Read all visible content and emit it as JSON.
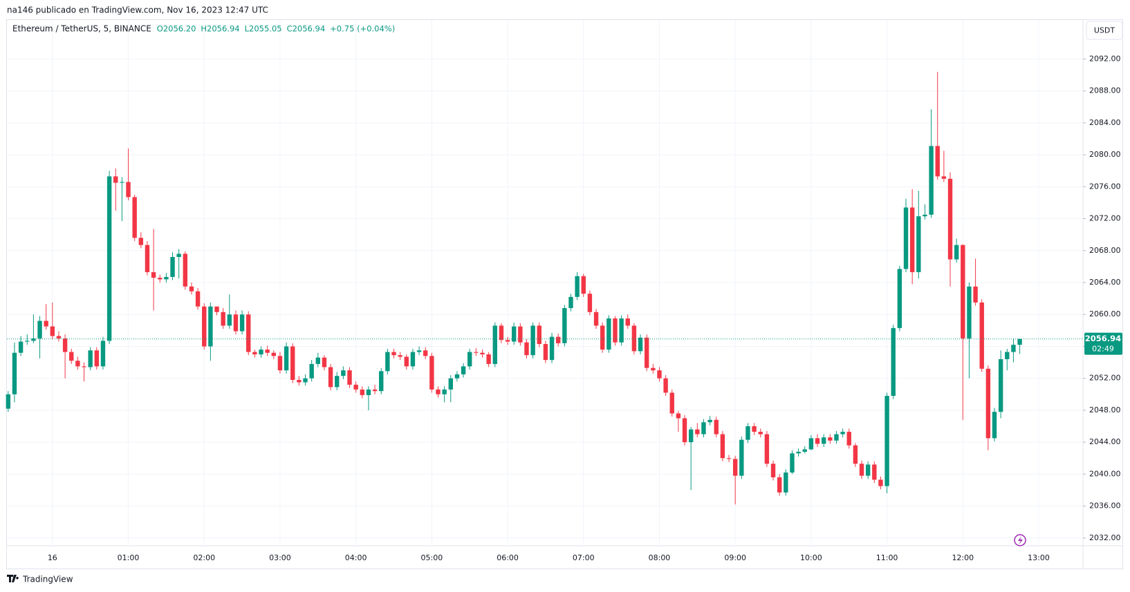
{
  "header": {
    "text": "na146 publicado en TradingView.com, Nov 16, 2023 12:47 UTC"
  },
  "chart_data": {
    "type": "candlestick",
    "symbol": "Ethereum / TetherUS, 5, BINANCE",
    "ohlc_label": [
      "O2056.20",
      "H2056.94",
      "L2055.05",
      "C2056.94",
      "+0.75 (+0.04%)"
    ],
    "currency": "USDT",
    "countdown": "02:49",
    "up_color": "#089981",
    "down_color": "#f23645",
    "grid": true,
    "last_price_line": true,
    "xlim": [
      -36,
      815
    ],
    "ylim": [
      2031.03,
      2096.8
    ],
    "xticks": [
      {
        "value": 0,
        "label": "16"
      },
      {
        "value": 60,
        "label": "01:00"
      },
      {
        "value": 120,
        "label": "02:00"
      },
      {
        "value": 180,
        "label": "03:00"
      },
      {
        "value": 240,
        "label": "04:00"
      },
      {
        "value": 300,
        "label": "05:00"
      },
      {
        "value": 360,
        "label": "06:00"
      },
      {
        "value": 420,
        "label": "07:00"
      },
      {
        "value": 480,
        "label": "08:00"
      },
      {
        "value": 540,
        "label": "09:00"
      },
      {
        "value": 600,
        "label": "10:00"
      },
      {
        "value": 660,
        "label": "11:00"
      },
      {
        "value": 720,
        "label": "12:00"
      },
      {
        "value": 780,
        "label": "13:00"
      }
    ],
    "yticks": [
      {
        "value": 2032,
        "label": "2032.00"
      },
      {
        "value": 2036,
        "label": "2036.00"
      },
      {
        "value": 2040,
        "label": "2040.00"
      },
      {
        "value": 2044,
        "label": "2044.00"
      },
      {
        "value": 2048,
        "label": "2048.00"
      },
      {
        "value": 2052,
        "label": "2052.00"
      },
      {
        "value": 2056,
        "label": "2056.00"
      },
      {
        "value": 2060,
        "label": "2060.00"
      },
      {
        "value": 2064,
        "label": "2064.00"
      },
      {
        "value": 2068,
        "label": "2068.00"
      },
      {
        "value": 2072,
        "label": "2072.00"
      },
      {
        "value": 2076,
        "label": "2076.00"
      },
      {
        "value": 2080,
        "label": "2080.00"
      },
      {
        "value": 2084,
        "label": "2084.00"
      },
      {
        "value": 2088,
        "label": "2088.00"
      },
      {
        "value": 2092,
        "label": "2092.00"
      }
    ],
    "x": [
      -35,
      -30,
      -25,
      -20,
      -15,
      -10,
      -5,
      0,
      5,
      10,
      15,
      20,
      25,
      30,
      35,
      40,
      45,
      50,
      55,
      60,
      65,
      70,
      75,
      80,
      85,
      90,
      95,
      100,
      105,
      110,
      115,
      120,
      125,
      130,
      135,
      140,
      145,
      150,
      155,
      160,
      165,
      170,
      175,
      180,
      185,
      190,
      195,
      200,
      205,
      210,
      215,
      220,
      225,
      230,
      235,
      240,
      245,
      250,
      255,
      260,
      265,
      270,
      275,
      280,
      285,
      290,
      295,
      300,
      305,
      310,
      315,
      320,
      325,
      330,
      335,
      340,
      345,
      350,
      355,
      360,
      365,
      370,
      375,
      380,
      385,
      390,
      395,
      400,
      405,
      410,
      415,
      420,
      425,
      430,
      435,
      440,
      445,
      450,
      455,
      460,
      465,
      470,
      475,
      480,
      485,
      490,
      495,
      500,
      505,
      510,
      515,
      520,
      525,
      530,
      535,
      540,
      545,
      550,
      555,
      560,
      565,
      570,
      575,
      580,
      585,
      590,
      595,
      600,
      605,
      610,
      615,
      620,
      625,
      630,
      635,
      640,
      645,
      650,
      655,
      660,
      665,
      670,
      675,
      680,
      685,
      690,
      695,
      700,
      705,
      710,
      715,
      720,
      725,
      730,
      735,
      740,
      745,
      750,
      755,
      760,
      765
    ],
    "open": [
      2048.2,
      2050.0,
      2055.2,
      2056.6,
      2056.7,
      2057.0,
      2059.2,
      2058.5,
      2057.3,
      2057.0,
      2055.3,
      2054.2,
      2053.5,
      2053.4,
      2055.5,
      2053.5,
      2056.7,
      2077.3,
      2076.5,
      2076.6,
      2074.7,
      2069.6,
      2068.7,
      2065.3,
      2064.6,
      2064.4,
      2064.7,
      2067.2,
      2067.6,
      2063.5,
      2062.9,
      2061.0,
      2056.0,
      2061.0,
      2060.3,
      2058.6,
      2060.0,
      2057.9,
      2060.0,
      2055.3,
      2055.0,
      2055.6,
      2055.2,
      2054.8,
      2053.0,
      2056.0,
      2051.8,
      2051.5,
      2052.0,
      2053.8,
      2054.6,
      2053.4,
      2050.9,
      2052.3,
      2053.0,
      2051.2,
      2050.6,
      2049.9,
      2050.6,
      2050.4,
      2052.9,
      2055.3,
      2054.9,
      2054.7,
      2053.5,
      2055.3,
      2055.5,
      2054.8,
      2050.6,
      2050.0,
      2050.6,
      2052.0,
      2052.5,
      2053.5,
      2055.3,
      2055.2,
      2055.0,
      2053.8,
      2058.6,
      2056.8,
      2056.6,
      2058.5,
      2056.5,
      2054.9,
      2058.6,
      2056.3,
      2054.3,
      2057.2,
      2056.4,
      2060.8,
      2062.2,
      2064.8,
      2062.6,
      2060.3,
      2058.6,
      2055.6,
      2059.5,
      2056.5,
      2059.5,
      2058.6,
      2055.4,
      2057.1,
      2053.3,
      2053.0,
      2052.0,
      2050.2,
      2047.6,
      2047.0,
      2044.0,
      2045.6,
      2045.0,
      2046.5,
      2046.8,
      2045.0,
      2042.0,
      2041.9,
      2039.8,
      2044.3,
      2046.0,
      2045.3,
      2045.0,
      2041.3,
      2039.6,
      2037.7,
      2040.2,
      2042.6,
      2042.8,
      2043.1,
      2044.5,
      2043.8,
      2044.6,
      2044.2,
      2045.0,
      2045.3,
      2043.6,
      2041.3,
      2039.8,
      2041.2,
      2039.3,
      2038.5,
      2049.8,
      2058.3,
      2065.7,
      2073.4,
      2065.3,
      2072.3,
      2072.5,
      2081.1,
      2077.3,
      2077.0,
      2066.9,
      2068.7,
      2057.0,
      2063.5,
      2061.5,
      2053.2,
      2044.5,
      2047.8,
      2054.4,
      2055.3,
      2056.2
    ],
    "high": [
      2050.4,
      2056.5,
      2057.3,
      2057.5,
      2060.0,
      2059.8,
      2061.3,
      2061.5,
      2057.9,
      2057.5,
      2055.7,
      2054.7,
      2054.0,
      2055.9,
      2055.9,
      2057.2,
      2078.0,
      2078.3,
      2077.2,
      2080.8,
      2075.0,
      2070.3,
      2069.2,
      2070.7,
      2065.0,
      2065.2,
      2067.8,
      2068.2,
      2067.9,
      2064.0,
      2063.3,
      2061.4,
      2061.5,
      2061.0,
      2060.8,
      2062.5,
      2060.5,
      2060.5,
      2060.4,
      2055.6,
      2056.0,
      2056.1,
      2055.5,
      2055.3,
      2056.5,
      2056.4,
      2052.3,
      2052.5,
      2054.3,
      2055.2,
      2054.9,
      2053.8,
      2052.8,
      2053.5,
      2053.4,
      2051.6,
      2051.0,
      2051.0,
      2051.2,
      2053.3,
      2055.7,
      2055.7,
      2055.3,
      2055.0,
      2055.7,
      2056.0,
      2055.9,
      2055.2,
      2051.0,
      2051.0,
      2052.4,
      2052.9,
      2053.9,
      2055.7,
      2055.8,
      2055.6,
      2055.3,
      2059.0,
      2058.9,
      2057.2,
      2059.0,
      2058.9,
      2056.9,
      2059.0,
      2059.0,
      2056.7,
      2057.7,
      2057.6,
      2061.2,
      2062.6,
      2065.3,
      2065.1,
      2063.0,
      2060.7,
      2059.0,
      2059.9,
      2059.8,
      2059.9,
      2060.0,
      2058.9,
      2057.5,
      2057.5,
      2053.8,
      2053.4,
      2052.4,
      2050.6,
      2047.9,
      2047.4,
      2045.9,
      2046.4,
      2046.9,
      2047.3,
      2047.2,
      2045.4,
      2042.4,
      2042.3,
      2044.7,
      2046.4,
      2046.4,
      2045.7,
      2045.4,
      2041.7,
      2040.0,
      2040.6,
      2043.0,
      2043.2,
      2043.5,
      2044.9,
      2045.0,
      2045.0,
      2045.0,
      2045.4,
      2045.7,
      2045.7,
      2043.9,
      2041.7,
      2041.6,
      2041.6,
      2039.7,
      2050.2,
      2058.7,
      2066.1,
      2074.5,
      2075.7,
      2075.5,
      2073.8,
      2085.7,
      2090.4,
      2080.5,
      2077.8,
      2069.5,
      2068.8,
      2064.0,
      2067.0,
      2061.9,
      2053.6,
      2048.3,
      2055.5,
      2055.7,
      2057.0,
      2056.94
    ],
    "low": [
      2047.8,
      2049.0,
      2054.8,
      2056.2,
      2056.4,
      2054.5,
      2058.1,
      2056.9,
      2056.6,
      2052.0,
      2053.8,
      2053.1,
      2051.6,
      2053.0,
      2053.1,
      2053.1,
      2056.3,
      2073.0,
      2071.7,
      2074.3,
      2069.2,
      2068.3,
      2064.9,
      2060.5,
      2064.0,
      2064.0,
      2064.3,
      2064.5,
      2063.1,
      2062.5,
      2060.6,
      2055.6,
      2054.2,
      2059.9,
      2058.2,
      2058.2,
      2057.5,
      2057.5,
      2054.9,
      2054.6,
      2054.6,
      2054.8,
      2054.4,
      2052.6,
      2052.6,
      2051.4,
      2051.1,
      2051.1,
      2051.6,
      2053.4,
      2053.0,
      2050.5,
      2050.5,
      2051.9,
      2050.8,
      2050.2,
      2049.5,
      2048.0,
      2050.0,
      2050.0,
      2052.5,
      2054.5,
      2054.3,
      2053.1,
      2053.1,
      2054.9,
      2054.4,
      2050.2,
      2049.6,
      2049.0,
      2049.0,
      2051.6,
      2052.1,
      2053.1,
      2054.8,
      2054.6,
      2053.4,
      2053.4,
      2056.4,
      2056.2,
      2056.2,
      2056.1,
      2054.5,
      2054.5,
      2055.9,
      2053.9,
      2053.9,
      2056.0,
      2056.0,
      2060.4,
      2061.8,
      2062.2,
      2059.9,
      2058.2,
      2055.2,
      2055.2,
      2056.1,
      2056.1,
      2058.2,
      2055.0,
      2055.0,
      2052.9,
      2052.6,
      2051.6,
      2049.8,
      2047.2,
      2045.3,
      2043.6,
      2038.0,
      2044.6,
      2044.6,
      2046.1,
      2044.6,
      2041.6,
      2041.5,
      2036.2,
      2039.4,
      2043.9,
      2044.9,
      2044.6,
      2040.9,
      2039.2,
      2037.3,
      2037.3,
      2040.0,
      2042.2,
      2042.6,
      2043.0,
      2043.4,
      2043.4,
      2043.8,
      2043.8,
      2044.6,
      2043.2,
      2040.9,
      2039.4,
      2039.4,
      2038.9,
      2038.1,
      2037.6,
      2049.4,
      2057.9,
      2065.3,
      2063.8,
      2064.5,
      2071.9,
      2072.1,
      2076.9,
      2076.6,
      2063.5,
      2066.5,
      2046.8,
      2052.0,
      2061.1,
      2052.8,
      2043.0,
      2044.1,
      2047.0,
      2053.0,
      2054.0,
      2055.05
    ],
    "close": [
      2050.0,
      2055.2,
      2056.6,
      2056.7,
      2057.0,
      2059.2,
      2058.5,
      2057.3,
      2057.0,
      2055.3,
      2054.2,
      2053.5,
      2053.4,
      2055.5,
      2053.5,
      2056.7,
      2077.3,
      2076.5,
      2076.6,
      2074.7,
      2069.6,
      2068.7,
      2065.3,
      2064.6,
      2064.4,
      2064.7,
      2067.2,
      2067.6,
      2063.5,
      2062.9,
      2061.0,
      2056.0,
      2061.0,
      2060.3,
      2058.6,
      2060.0,
      2057.9,
      2060.0,
      2055.3,
      2055.0,
      2055.6,
      2055.2,
      2054.8,
      2053.0,
      2056.0,
      2051.8,
      2051.5,
      2052.0,
      2053.8,
      2054.6,
      2053.4,
      2050.9,
      2052.3,
      2053.0,
      2051.2,
      2050.6,
      2049.9,
      2050.6,
      2050.4,
      2052.9,
      2055.3,
      2054.9,
      2054.7,
      2053.5,
      2055.3,
      2055.5,
      2054.8,
      2050.6,
      2050.0,
      2050.6,
      2052.0,
      2052.5,
      2053.5,
      2055.3,
      2055.2,
      2055.0,
      2053.8,
      2058.6,
      2056.8,
      2056.6,
      2058.5,
      2056.5,
      2054.9,
      2058.6,
      2056.3,
      2054.3,
      2057.2,
      2056.4,
      2060.8,
      2062.2,
      2064.8,
      2062.6,
      2060.3,
      2058.6,
      2055.6,
      2059.5,
      2056.5,
      2059.5,
      2058.6,
      2055.4,
      2057.1,
      2053.3,
      2053.0,
      2052.0,
      2050.2,
      2047.6,
      2047.0,
      2044.0,
      2045.6,
      2045.0,
      2046.5,
      2046.8,
      2045.0,
      2042.0,
      2041.9,
      2039.8,
      2044.3,
      2046.0,
      2045.3,
      2045.0,
      2041.3,
      2039.6,
      2037.7,
      2040.2,
      2042.6,
      2042.8,
      2043.1,
      2044.5,
      2043.8,
      2044.6,
      2044.2,
      2045.0,
      2045.3,
      2043.6,
      2041.3,
      2039.8,
      2041.2,
      2039.3,
      2038.5,
      2049.8,
      2058.3,
      2065.7,
      2073.4,
      2065.3,
      2072.3,
      2072.5,
      2081.1,
      2077.3,
      2077.0,
      2066.9,
      2068.7,
      2057.0,
      2063.5,
      2061.5,
      2053.2,
      2044.5,
      2047.8,
      2054.4,
      2055.3,
      2056.2,
      2056.94
    ]
  },
  "footer": {
    "brand": "TradingView"
  }
}
